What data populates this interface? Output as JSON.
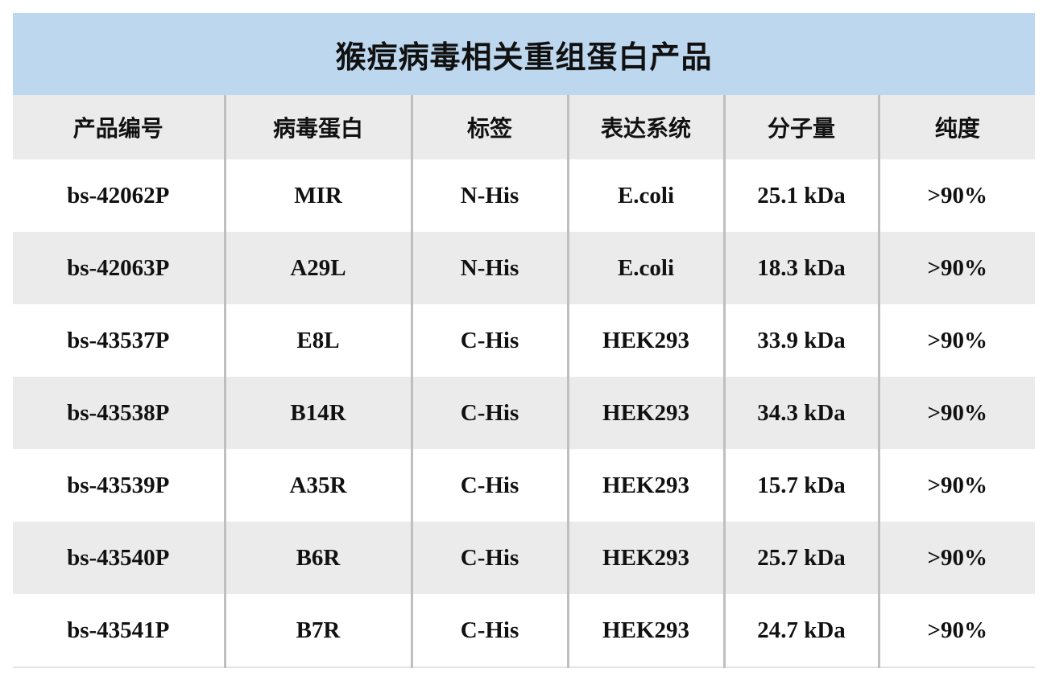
{
  "title": "猴痘病毒相关重组蛋白产品",
  "columns": [
    "产品编号",
    "病毒蛋白",
    "标签",
    "表达系统",
    "分子量",
    "纯度"
  ],
  "rows": [
    [
      "bs-42062P",
      "MIR",
      "N-His",
      "E.coli",
      "25.1 kDa",
      ">90%"
    ],
    [
      "bs-42063P",
      "A29L",
      "N-His",
      "E.coli",
      "18.3 kDa",
      ">90%"
    ],
    [
      "bs-43537P",
      "E8L",
      "C-His",
      "HEK293",
      "33.9 kDa",
      ">90%"
    ],
    [
      "bs-43538P",
      "B14R",
      "C-His",
      "HEK293",
      "34.3 kDa",
      ">90%"
    ],
    [
      "bs-43539P",
      "A35R",
      "C-His",
      "HEK293",
      "15.7 kDa",
      ">90%"
    ],
    [
      "bs-43540P",
      "B6R",
      "C-His",
      "HEK293",
      "25.7 kDa",
      ">90%"
    ],
    [
      "bs-43541P",
      "B7R",
      "C-His",
      "HEK293",
      "24.7 kDa",
      ">90%"
    ]
  ],
  "colors": {
    "title_bg": "#bdd7ee",
    "stripe_bg": "#ebebeb",
    "divider": "#bfbfbf"
  }
}
